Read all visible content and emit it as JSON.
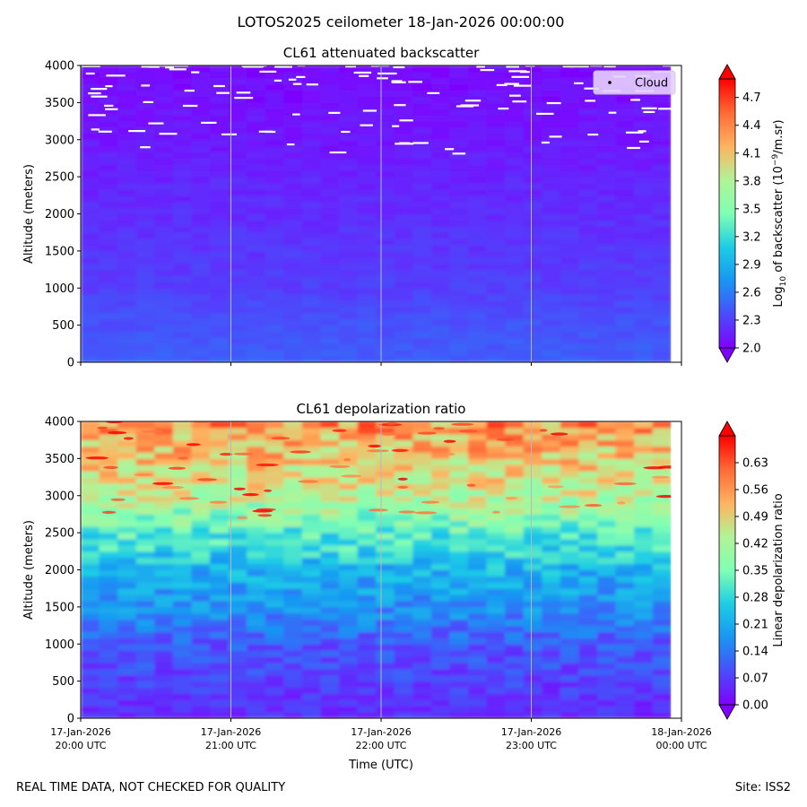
{
  "suptitle": "LOTOS2025 ceilometer 18-Jan-2026 00:00:00",
  "footer_left": "REAL TIME DATA, NOT CHECKED FOR QUALITY",
  "footer_right": "Site: ISS2",
  "chart_data": [
    {
      "type": "heatmap",
      "title": "CL61 attenuated backscatter",
      "ylabel": "Altitude (meters)",
      "xlabel": "",
      "ylim": [
        0,
        4000
      ],
      "yticks": [
        0,
        500,
        1000,
        1500,
        2000,
        2500,
        3000,
        3500,
        4000
      ],
      "x_range_hours": [
        20,
        24
      ],
      "x_tick_hours": [
        20,
        21,
        22,
        23,
        24
      ],
      "x_tick_labels": [
        [
          "17-Jan-2026",
          "20:00 UTC"
        ],
        [
          "17-Jan-2026",
          "21:00 UTC"
        ],
        [
          "17-Jan-2026",
          "22:00 UTC"
        ],
        [
          "17-Jan-2026",
          "23:00 UTC"
        ],
        [
          "18-Jan-2026",
          "00:00 UTC"
        ]
      ],
      "show_x_tick_labels": false,
      "data_end_hour": 23.93,
      "vertical_lines_hours": [
        21,
        22,
        23
      ],
      "legend": {
        "label": "Cloud",
        "placement": "top-right"
      },
      "cloud_altitude_range": [
        2800,
        4000
      ],
      "colorbar": {
        "label_prefix": "Log",
        "label_subscript": "10",
        "label_mid": " of backscatter (10",
        "label_superscript": "−9",
        "label_suffix": "/m.sr)",
        "min": 2.0,
        "max": 4.9,
        "ticks": [
          2.0,
          2.3,
          2.6,
          2.9,
          3.2,
          3.5,
          3.8,
          4.1,
          4.4,
          4.7
        ],
        "tick_labels": [
          "2.0",
          "2.3",
          "2.6",
          "2.9",
          "3.2",
          "3.5",
          "3.8",
          "4.1",
          "4.4",
          "4.7"
        ],
        "extend": "both"
      },
      "profile": [
        {
          "altitude": 0,
          "value": 2.45
        },
        {
          "altitude": 600,
          "value": 2.38
        },
        {
          "altitude": 1000,
          "value": 2.3
        },
        {
          "altitude": 2000,
          "value": 2.22
        },
        {
          "altitude": 3000,
          "value": 2.12
        },
        {
          "altitude": 4000,
          "value": 2.05
        }
      ]
    },
    {
      "type": "heatmap",
      "title": "CL61 depolarization ratio",
      "ylabel": "Altitude (meters)",
      "xlabel": "Time (UTC)",
      "ylim": [
        0,
        4000
      ],
      "yticks": [
        0,
        500,
        1000,
        1500,
        2000,
        2500,
        3000,
        3500,
        4000
      ],
      "x_range_hours": [
        20,
        24
      ],
      "x_tick_hours": [
        20,
        21,
        22,
        23,
        24
      ],
      "x_tick_labels": [
        [
          "17-Jan-2026",
          "20:00 UTC"
        ],
        [
          "17-Jan-2026",
          "21:00 UTC"
        ],
        [
          "17-Jan-2026",
          "22:00 UTC"
        ],
        [
          "17-Jan-2026",
          "23:00 UTC"
        ],
        [
          "18-Jan-2026",
          "00:00 UTC"
        ]
      ],
      "show_x_tick_labels": true,
      "data_end_hour": 23.93,
      "vertical_lines_hours": [
        21,
        22,
        23
      ],
      "colorbar": {
        "label": "Linear depolarization ratio",
        "min": 0.0,
        "max": 0.7,
        "ticks": [
          0.0,
          0.07,
          0.14,
          0.21,
          0.28,
          0.35,
          0.42,
          0.49,
          0.56,
          0.63
        ],
        "tick_labels": [
          "0.00",
          "0.07",
          "0.14",
          "0.21",
          "0.28",
          "0.35",
          "0.42",
          "0.49",
          "0.56",
          "0.63"
        ],
        "extend": "both"
      },
      "profile": [
        {
          "altitude": 0,
          "value": 0.05
        },
        {
          "altitude": 1000,
          "value": 0.1
        },
        {
          "altitude": 1500,
          "value": 0.17
        },
        {
          "altitude": 2000,
          "value": 0.22
        },
        {
          "altitude": 2500,
          "value": 0.32
        },
        {
          "altitude": 3000,
          "value": 0.44
        },
        {
          "altitude": 3500,
          "value": 0.5
        },
        {
          "altitude": 4000,
          "value": 0.56
        }
      ]
    }
  ]
}
